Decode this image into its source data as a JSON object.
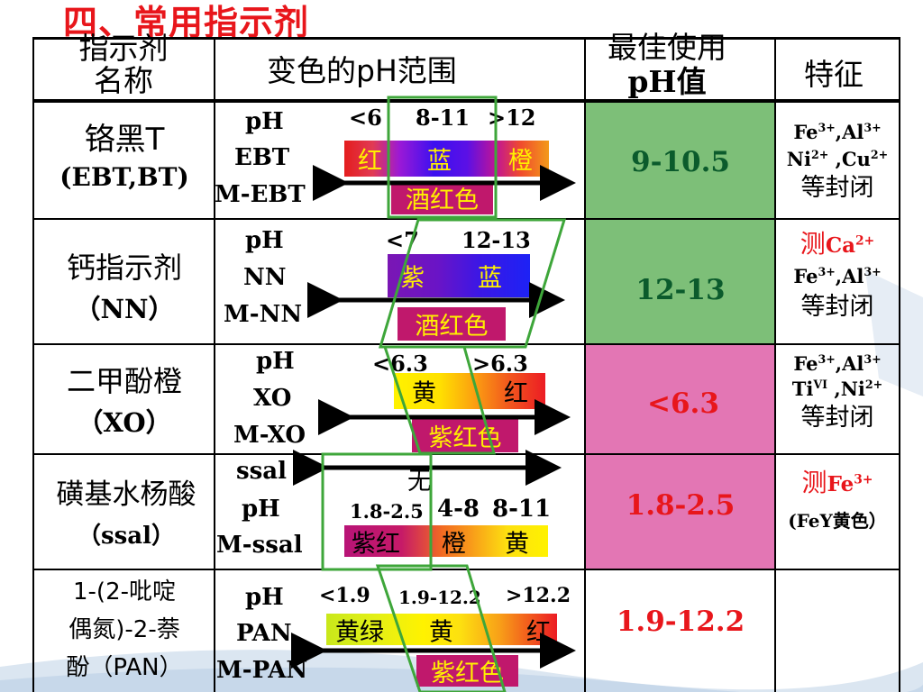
{
  "slide": {
    "title": "四、常用指示剂"
  },
  "header": {
    "col1": [
      "指示剂",
      "名称"
    ],
    "col2": "变色的pH范围",
    "col3": [
      "最佳使用",
      "pH值"
    ],
    "col4": "特征"
  },
  "rows": [
    {
      "name": [
        "铬黑T",
        "(EBT,BT)"
      ],
      "labels": [
        "pH",
        "EBT",
        "M-EBT"
      ],
      "ranges": [
        "<6",
        "8-11",
        ">12"
      ],
      "colors": [
        "红",
        "蓝",
        "橙"
      ],
      "complex": "酒红色",
      "best": "9-10.5",
      "features": [
        "Fe3+,Al3+",
        "Ni2+ ,Cu2+",
        "等封闭"
      ]
    },
    {
      "name": [
        "钙指示剂",
        "（NN）"
      ],
      "labels": [
        "pH",
        "NN",
        "M-NN"
      ],
      "ranges": [
        "<7",
        "12-13"
      ],
      "colors": [
        "紫",
        "蓝"
      ],
      "complex": "酒红色",
      "best": "12-13",
      "features": [
        "测Ca2+",
        "Fe3+,Al3+",
        "等封闭"
      ]
    },
    {
      "name": [
        "二甲酚橙",
        "（XO）"
      ],
      "labels": [
        "pH",
        "XO",
        "M-XO"
      ],
      "ranges": [
        "<6.3",
        ">6.3"
      ],
      "colors": [
        "黄",
        "红"
      ],
      "complex": "紫红色",
      "best": "<6.3",
      "features": [
        "Fe3+,Al3+",
        "TiVI ,Ni2+",
        "等封闭"
      ]
    },
    {
      "name": [
        "磺基水杨酸",
        "（ssal）"
      ],
      "labels": [
        "ssal",
        "pH",
        "M-ssal"
      ],
      "ssal_color": "无",
      "ranges": [
        "1.8-2.5",
        "4-8",
        "8-11"
      ],
      "colors": [
        "紫红",
        "橙",
        "黄"
      ],
      "best": "1.8-2.5",
      "features": [
        "测Fe3+",
        "(FeY黄色）"
      ]
    },
    {
      "name": [
        "1-(2-吡啶",
        "偶氮)-2-萘",
        "酚（PAN）"
      ],
      "labels": [
        "pH",
        "PAN",
        "M-PAN"
      ],
      "ranges": [
        "<1.9",
        "1.9-12.2",
        ">12.2"
      ],
      "colors": [
        "黄绿",
        "黄",
        "红"
      ],
      "complex": "紫红色",
      "best": "1.9-12.2"
    }
  ],
  "colors": {
    "title_red": "#e8161b",
    "green_cell": "#7dbf78",
    "pink_cell": "#e376b4",
    "best_text_green": "#0b5b2c",
    "best_text_red": "#e8161b",
    "outline_green": "#3ea63a",
    "chip_magenta": "#c0186c"
  }
}
